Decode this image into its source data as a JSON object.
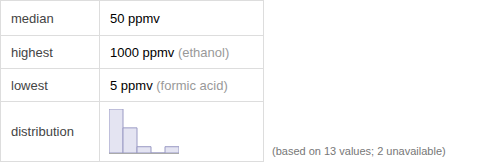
{
  "table": {
    "rows": [
      {
        "label": "median",
        "value": "50 ppmv"
      },
      {
        "label": "highest",
        "value": "1000 ppmv",
        "note": "(ethanol)"
      },
      {
        "label": "lowest",
        "value": "5 ppmv",
        "note": "(formic acid)"
      },
      {
        "label": "distribution"
      }
    ]
  },
  "footnote": "(based on 13 values; 2 unavailable)",
  "chart_data": {
    "type": "histogram",
    "bins": [
      0,
      200,
      400,
      600,
      800,
      1000
    ],
    "counts": [
      7,
      4,
      1,
      0,
      1
    ],
    "color": "#e4e4f2",
    "xlim": [
      0,
      1000
    ],
    "ylim": [
      0,
      7
    ],
    "tick_labels": false,
    "grid": false
  }
}
